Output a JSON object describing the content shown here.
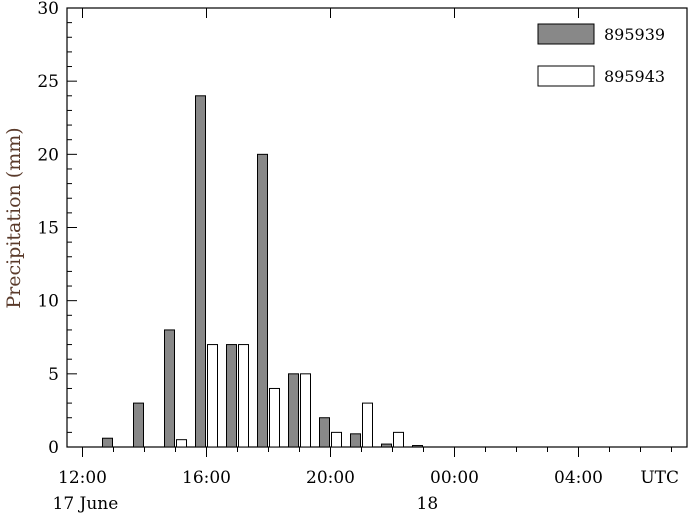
{
  "chart_data": {
    "type": "bar",
    "xlabel": "",
    "ylabel": "Precipitation (mm)",
    "ylim": [
      0,
      30
    ],
    "yticks": [
      0,
      5,
      10,
      15,
      20,
      25,
      30
    ],
    "x_unit": "UTC",
    "x_ticks": [
      {
        "hour": 12,
        "label": "12:00",
        "sublabel": "17 June"
      },
      {
        "hour": 16,
        "label": "16:00",
        "sublabel": ""
      },
      {
        "hour": 20,
        "label": "20:00",
        "sublabel": ""
      },
      {
        "hour": 24,
        "label": "00:00",
        "sublabel": "18"
      },
      {
        "hour": 28,
        "label": "04:00",
        "sublabel": ""
      }
    ],
    "xlim_hours": [
      11.5,
      31.5
    ],
    "legend_position": "top-right",
    "grid": false,
    "series": [
      {
        "name": "895939",
        "color": "#888888",
        "points": [
          {
            "hour": 13,
            "value": 0.6
          },
          {
            "hour": 14,
            "value": 3
          },
          {
            "hour": 15,
            "value": 8
          },
          {
            "hour": 16,
            "value": 24
          },
          {
            "hour": 17,
            "value": 7
          },
          {
            "hour": 18,
            "value": 20
          },
          {
            "hour": 19,
            "value": 5
          },
          {
            "hour": 20,
            "value": 2
          },
          {
            "hour": 21,
            "value": 0.9
          },
          {
            "hour": 22,
            "value": 0.2
          },
          {
            "hour": 23,
            "value": 0.1
          }
        ]
      },
      {
        "name": "895943",
        "color": "#ffffff",
        "points": [
          {
            "hour": 15,
            "value": 0.5
          },
          {
            "hour": 16,
            "value": 7
          },
          {
            "hour": 17,
            "value": 7
          },
          {
            "hour": 18,
            "value": 4
          },
          {
            "hour": 19,
            "value": 5
          },
          {
            "hour": 20,
            "value": 1
          },
          {
            "hour": 21,
            "value": 3
          },
          {
            "hour": 22,
            "value": 1
          }
        ]
      }
    ]
  }
}
